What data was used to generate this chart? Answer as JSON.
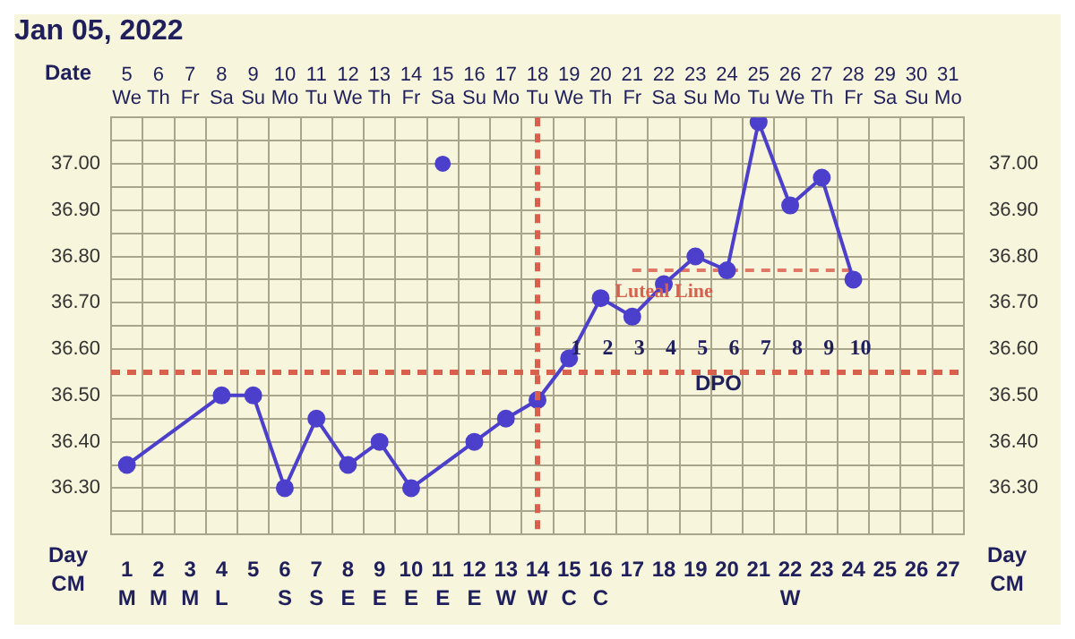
{
  "chart_data": {
    "type": "line",
    "title": "Jan 05, 2022",
    "xlabel": "Date",
    "x2label": "Day\nCM",
    "categories": [
      "5\nWe",
      "6\nTh",
      "7\nFr",
      "8\nSa",
      "9\nSu",
      "10\nMo",
      "11\nTu",
      "12\nWe",
      "13\nTh",
      "14\nFr",
      "15\nSa",
      "16\nSu",
      "17\nMo",
      "18\nTu",
      "19\nWe",
      "20\nTh",
      "21\nFr",
      "22\nSa",
      "23\nSu",
      "24\nMo",
      "25\nTu",
      "26\nWe",
      "27\nTh",
      "28\nFr",
      "29\nSa",
      "30\nSu",
      "31\nMo"
    ],
    "series": [
      {
        "type": "line",
        "color": "#4b3fcc",
        "marker": "circle",
        "line_style": "solid",
        "values": [
          36.35,
          null,
          null,
          36.5,
          36.5,
          36.3,
          36.45,
          36.35,
          36.4,
          36.3,
          null,
          36.4,
          36.45,
          36.49,
          36.58,
          36.71,
          36.67,
          36.74,
          36.8,
          36.77,
          37.09,
          36.91,
          36.97,
          36.75,
          null,
          null,
          null
        ]
      },
      {
        "type": "scatter",
        "color": "#4b3fcc",
        "marker": "circle",
        "values": [
          null,
          null,
          null,
          null,
          null,
          null,
          null,
          null,
          null,
          null,
          37.0,
          null,
          null,
          null,
          null,
          null,
          null,
          null,
          null,
          null,
          null,
          null,
          null,
          null,
          null,
          null,
          null
        ]
      },
      {
        "type": "line",
        "color": "#e07868",
        "marker": "none",
        "line_style": "dashed",
        "values": [
          null,
          null,
          null,
          null,
          null,
          null,
          null,
          null,
          null,
          null,
          null,
          null,
          null,
          null,
          null,
          null,
          36.77,
          36.77,
          36.77,
          36.77,
          36.77,
          36.77,
          36.77,
          36.77,
          null,
          null,
          null
        ]
      }
    ],
    "ylim": [
      36.2,
      37.1
    ],
    "yticks": [
      {
        "value": 36.25,
        "label": null
      },
      {
        "value": 36.3,
        "label": "36.30"
      },
      {
        "value": 36.35,
        "label": null
      },
      {
        "value": 36.4,
        "label": "36.40"
      },
      {
        "value": 36.45,
        "label": null
      },
      {
        "value": 36.5,
        "label": "36.50"
      },
      {
        "value": 36.6,
        "label": "36.60"
      },
      {
        "value": 36.65,
        "label": null
      },
      {
        "value": 36.7,
        "label": "36.70"
      },
      {
        "value": 36.75,
        "label": null
      },
      {
        "value": 36.8,
        "label": "36.80"
      },
      {
        "value": 36.85,
        "label": null
      },
      {
        "value": 36.9,
        "label": "36.90"
      },
      {
        "value": 36.95,
        "label": null
      },
      {
        "value": 37.0,
        "label": "37.00"
      },
      {
        "value": 37.05,
        "label": null
      }
    ],
    "y2lim": [
      36.2,
      37.1
    ],
    "y2ticks": [
      {
        "value": 36.3,
        "label": "36.30"
      },
      {
        "value": 36.4,
        "label": "36.40"
      },
      {
        "value": 36.5,
        "label": "36.50"
      },
      {
        "value": 36.6,
        "label": "36.60"
      },
      {
        "value": 36.7,
        "label": "36.70"
      },
      {
        "value": 36.8,
        "label": "36.80"
      },
      {
        "value": 36.9,
        "label": "36.90"
      },
      {
        "value": 37.0,
        "label": "37.00"
      }
    ],
    "x2lim": [
      0.5,
      27.5
    ],
    "x2ticks": [
      {
        "value": 1,
        "label": "1\nM"
      },
      {
        "value": 2,
        "label": "2\nM"
      },
      {
        "value": 3,
        "label": "3\nM"
      },
      {
        "value": 4,
        "label": "4\nL"
      },
      {
        "value": 5,
        "label": "5\n "
      },
      {
        "value": 6,
        "label": "6\nS"
      },
      {
        "value": 7,
        "label": "7\nS"
      },
      {
        "value": 8,
        "label": "8\nE"
      },
      {
        "value": 9,
        "label": "9\nE"
      },
      {
        "value": 10,
        "label": "10\nE"
      },
      {
        "value": 11,
        "label": "11\nE"
      },
      {
        "value": 12,
        "label": "12\nE"
      },
      {
        "value": 13,
        "label": "13\nW"
      },
      {
        "value": 14,
        "label": "14\nW"
      },
      {
        "value": 15,
        "label": "15\nC"
      },
      {
        "value": 16,
        "label": "16\nC"
      },
      {
        "value": 17,
        "label": "17\n "
      },
      {
        "value": 18,
        "label": "18\n "
      },
      {
        "value": 19,
        "label": "19\n "
      },
      {
        "value": 20,
        "label": "20\n "
      },
      {
        "value": 21,
        "label": "21\n "
      },
      {
        "value": 22,
        "label": "22\nW"
      },
      {
        "value": 23,
        "label": "23\n "
      },
      {
        "value": 24,
        "label": "24\n "
      },
      {
        "value": 25,
        "label": "25\n "
      },
      {
        "value": 26,
        "label": "26\n "
      },
      {
        "value": 27,
        "label": "27\n "
      }
    ],
    "grid": true,
    "legend": false,
    "ref_lines": [
      {
        "axis": "y",
        "value": 36.55,
        "color": "#d9604c",
        "line_style": "dashed"
      },
      {
        "axis": "x",
        "value": "18\nTu",
        "color": "#d9604c",
        "line_style": "dashed"
      }
    ],
    "annotations": [
      {
        "text": "Luteal Line",
        "x": "22\nSa",
        "y": 36.77
      },
      "1",
      "2",
      "3",
      "4",
      "5",
      "6",
      "7",
      "8",
      "9",
      "10",
      "DPO",
      "Day\nCM"
    ]
  }
}
